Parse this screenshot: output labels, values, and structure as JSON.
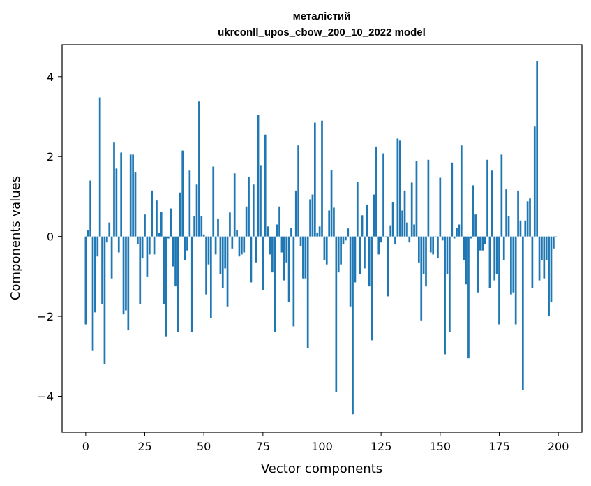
{
  "chart_data": {
    "type": "bar",
    "title_lines": [
      "металістий",
      "ukrconll_upos_cbow_200_10_2022 model"
    ],
    "xlabel": "Vector components",
    "ylabel": "Components values",
    "xlim": [
      -10,
      210
    ],
    "ylim": [
      -4.9,
      4.8
    ],
    "xticks": [
      0,
      25,
      50,
      75,
      100,
      125,
      150,
      175,
      200
    ],
    "yticks": [
      -4,
      -2,
      0,
      2,
      4
    ],
    "ytick_labels": [
      "−4",
      "−2",
      "0",
      "2",
      "4"
    ],
    "bar_color": "#1f77b4",
    "grid": false,
    "values": [
      -2.2,
      0.15,
      1.4,
      -2.85,
      -1.9,
      -0.5,
      3.48,
      -1.7,
      -3.2,
      -0.15,
      0.35,
      -1.05,
      2.35,
      1.7,
      -0.4,
      2.1,
      -1.95,
      -1.85,
      -2.35,
      2.05,
      2.05,
      1.6,
      -0.2,
      -1.7,
      -0.55,
      0.55,
      -1.0,
      -0.45,
      1.15,
      -0.45,
      0.9,
      0.1,
      0.62,
      -1.7,
      -2.5,
      -0.05,
      0.7,
      -0.75,
      -1.25,
      -2.4,
      1.1,
      2.15,
      -0.6,
      -0.35,
      1.65,
      -2.4,
      0.5,
      1.3,
      3.38,
      0.5,
      0.05,
      -1.45,
      -0.7,
      -2.05,
      1.75,
      -0.45,
      0.45,
      -0.95,
      -1.3,
      -0.8,
      -1.75,
      0.6,
      -0.3,
      1.58,
      0.15,
      -0.5,
      -0.45,
      -0.4,
      0.75,
      1.48,
      -1.15,
      1.3,
      -0.65,
      3.05,
      1.77,
      -1.35,
      2.55,
      0.25,
      -0.45,
      -0.9,
      -2.4,
      0.3,
      0.75,
      -0.4,
      -1.1,
      -0.65,
      -1.65,
      0.22,
      -2.25,
      1.15,
      2.28,
      -0.25,
      -1.05,
      -1.05,
      -2.8,
      0.93,
      1.05,
      2.85,
      0.1,
      0.25,
      2.9,
      -0.6,
      -0.7,
      0.65,
      1.67,
      0.72,
      -3.9,
      -0.9,
      -0.7,
      -0.2,
      -0.1,
      0.2,
      -1.75,
      -4.45,
      -1.15,
      1.37,
      -0.95,
      0.53,
      -0.8,
      0.8,
      -1.25,
      -2.6,
      1.05,
      2.25,
      -0.45,
      -0.15,
      2.08,
      0.0,
      -1.5,
      0.28,
      0.85,
      -0.2,
      2.45,
      2.4,
      0.65,
      1.15,
      0.35,
      -0.15,
      1.35,
      0.3,
      1.88,
      -0.65,
      -2.1,
      -0.95,
      -1.25,
      1.92,
      -0.4,
      -0.45,
      0.0,
      -0.55,
      1.47,
      -0.1,
      -2.95,
      -0.95,
      -2.4,
      1.85,
      -0.05,
      0.22,
      0.3,
      2.28,
      -0.6,
      -1.2,
      -3.05,
      -0.05,
      1.28,
      0.55,
      -1.4,
      -0.35,
      -0.35,
      -0.2,
      1.92,
      -1.3,
      1.65,
      -1.1,
      -0.95,
      -2.2,
      2.05,
      -0.6,
      1.18,
      0.5,
      -1.45,
      -1.4,
      -2.2,
      1.15,
      0.4,
      -3.85,
      0.4,
      0.88,
      0.95,
      -1.3,
      2.75,
      4.38,
      -1.1,
      -0.6,
      -1.05,
      -0.6,
      -2.0,
      -1.65,
      -0.3,
      0.0
    ]
  }
}
